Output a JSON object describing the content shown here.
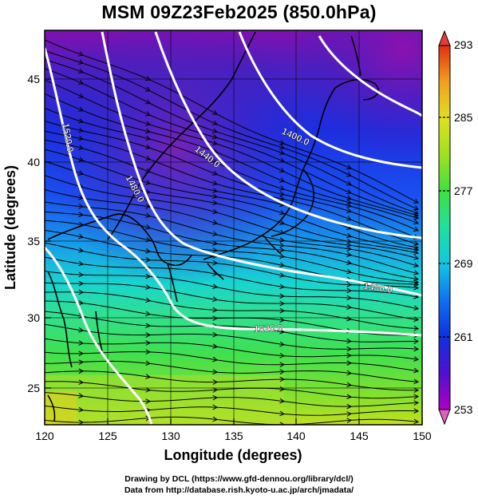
{
  "title": "MSM 09Z23Feb2025 (850.0hPa)",
  "chart_data": {
    "type": "heatmap",
    "xlabel": "Longitude (degrees)",
    "ylabel": "Latitude  (degrees)",
    "xlim": [
      120,
      150
    ],
    "ylim": [
      22.4,
      47.6
    ],
    "x_ticks": [
      "120",
      "125",
      "130",
      "135",
      "140",
      "145",
      "150"
    ],
    "y_ticks": [
      "25",
      "30",
      "35",
      "40",
      "45"
    ],
    "colorbar": {
      "min": 253,
      "max": 293,
      "tick_labels": [
        "293",
        "285",
        "277",
        "269",
        "261",
        "253"
      ],
      "gradient_colors": [
        "#b000c0",
        "#5010d0",
        "#1030e0",
        "#1070f0",
        "#10c8e0",
        "#20e0a0",
        "#40e040",
        "#a0e020",
        "#e0e020",
        "#f0a020",
        "#e03010"
      ],
      "extend": "both"
    },
    "contour_labels": [
      "1520.0",
      "1480.0",
      "1440.0",
      "1400.0",
      "1480.0",
      "1520.0"
    ],
    "overlays": [
      "wind-streamlines",
      "coastlines",
      "geopotential-height-contours"
    ]
  },
  "credit": {
    "line1": "Drawing by DCL (https://www.gfd-dennou.org/library/dcl/)",
    "line2": "Data from http://database.rish.kyoto-u.ac.jp/arch/jmadata/"
  }
}
